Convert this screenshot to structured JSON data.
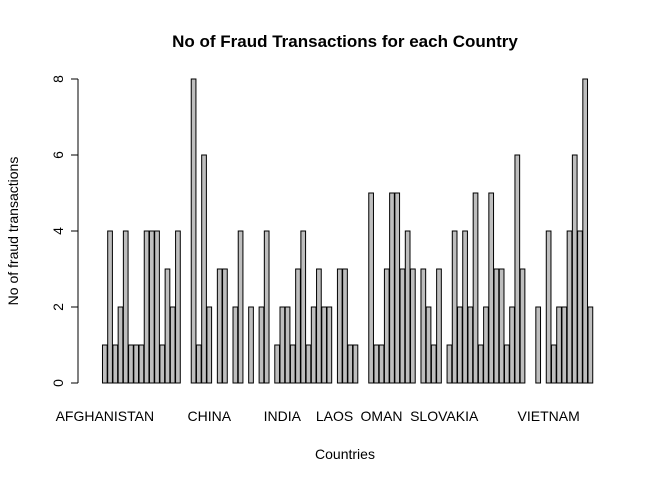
{
  "chart_data": {
    "type": "bar",
    "title": "No of Fraud Transactions for each Country",
    "xlabel": "Countries",
    "ylabel": "No of fraud transactions",
    "ylim": [
      0,
      8
    ],
    "yticks": [
      0,
      2,
      4,
      6,
      8
    ],
    "grid": false,
    "legend": "none",
    "bar_color": "#bebebe",
    "border_color": "#000000",
    "x_tick_labels": [
      {
        "label": "AFGHANISTAN",
        "index": 1
      },
      {
        "label": "CHINA",
        "index": 21
      },
      {
        "label": "INDIA",
        "index": 35
      },
      {
        "label": "LAOS",
        "index": 45
      },
      {
        "label": "OMAN",
        "index": 54
      },
      {
        "label": "SLOVAKIA",
        "index": 66
      },
      {
        "label": "VIETNAM",
        "index": 86
      }
    ],
    "values": [
      0,
      1,
      4,
      1,
      2,
      4,
      1,
      1,
      1,
      4,
      4,
      4,
      1,
      3,
      2,
      4,
      0,
      0,
      8,
      1,
      6,
      2,
      0,
      3,
      3,
      0,
      2,
      4,
      0,
      2,
      0,
      2,
      4,
      0,
      1,
      2,
      2,
      1,
      3,
      4,
      1,
      2,
      3,
      2,
      2,
      0,
      3,
      3,
      1,
      1,
      0,
      0,
      5,
      1,
      1,
      3,
      5,
      5,
      3,
      4,
      3,
      0,
      3,
      2,
      1,
      3,
      0,
      1,
      4,
      2,
      4,
      2,
      5,
      1,
      2,
      5,
      3,
      3,
      1,
      2,
      6,
      3,
      0,
      0,
      2,
      0,
      4,
      1,
      2,
      2,
      4,
      6,
      4,
      8,
      2
    ]
  }
}
